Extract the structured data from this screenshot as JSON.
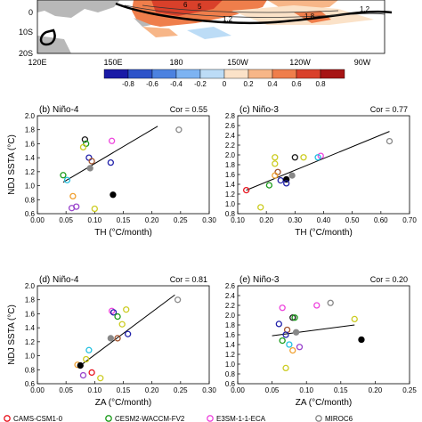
{
  "map": {
    "lat_labels": [
      "0",
      "10S",
      "20S"
    ],
    "lon_labels": [
      "120E",
      "150E",
      "180",
      "150W",
      "120W",
      "90W"
    ],
    "contour_labels": [
      "6",
      "5",
      "1.2",
      "1.8",
      "1.2"
    ],
    "colorbar_ticks": [
      "-0.8",
      "-0.6",
      "-0.4",
      "-0.2",
      "0",
      "0.2",
      "0.4",
      "0.6",
      "0.8"
    ],
    "colorbar_colors": [
      "#1a1aa6",
      "#2c52c9",
      "#4b82e0",
      "#7db3f2",
      "#bcdcf6",
      "#fbe2c8",
      "#f7b688",
      "#ef7e4b",
      "#d9402a",
      "#a61414"
    ]
  },
  "legend": {
    "items": [
      {
        "name": "CAMS-CSM1-0",
        "color": "#e8141e"
      },
      {
        "name": "CESM2-WACCM-FV2",
        "color": "#1a9b1a"
      },
      {
        "name": "E3SM-1-1-ECA",
        "color": "#ee44dd"
      },
      {
        "name": "MIROC6",
        "color": "#888888"
      }
    ]
  },
  "chart_data": [
    {
      "type": "scatter",
      "title": "(b) Niño-4",
      "cor_label": "Cor = 0.55",
      "xlabel": "TH (°C/month)",
      "ylabel": "NDJ SSTA (°C)",
      "xlim": [
        0,
        0.3
      ],
      "ylim": [
        0.6,
        2.0
      ],
      "xticks": [
        "0.00",
        "0.05",
        "0.10",
        "0.15",
        "0.20",
        "0.25",
        "0.30"
      ],
      "yticks": [
        "0.6",
        "0.8",
        "1.0",
        "1.2",
        "1.4",
        "1.6",
        "1.8",
        "2.0"
      ],
      "fit_line": [
        [
          0.045,
          1.05
        ],
        [
          0.21,
          1.85
        ]
      ],
      "points": [
        {
          "x": 0.247,
          "y": 1.8,
          "color": "#888888",
          "fill": "none"
        },
        {
          "x": 0.083,
          "y": 1.66,
          "color": "#1a1a1a",
          "fill": "none"
        },
        {
          "x": 0.13,
          "y": 1.64,
          "color": "#ee44dd",
          "fill": "none"
        },
        {
          "x": 0.085,
          "y": 1.6,
          "color": "#1a9b1a",
          "fill": "none"
        },
        {
          "x": 0.08,
          "y": 1.55,
          "color": "#cccc22",
          "fill": "none"
        },
        {
          "x": 0.09,
          "y": 1.4,
          "color": "#2222aa",
          "fill": "none"
        },
        {
          "x": 0.128,
          "y": 1.33,
          "color": "#2222aa",
          "fill": "none"
        },
        {
          "x": 0.095,
          "y": 1.35,
          "color": "#a0522d",
          "fill": "none"
        },
        {
          "x": 0.092,
          "y": 1.25,
          "color": "#888888",
          "fill": "#888888"
        },
        {
          "x": 0.045,
          "y": 1.15,
          "color": "#1a9b1a",
          "fill": "none"
        },
        {
          "x": 0.052,
          "y": 1.08,
          "color": "#22c0e0",
          "fill": "none"
        },
        {
          "x": 0.062,
          "y": 0.85,
          "color": "#f0a030",
          "fill": "none"
        },
        {
          "x": 0.132,
          "y": 0.87,
          "color": "#000000",
          "fill": "#000000"
        },
        {
          "x": 0.06,
          "y": 0.68,
          "color": "#9944cc",
          "fill": "none"
        },
        {
          "x": 0.068,
          "y": 0.7,
          "color": "#9944cc",
          "fill": "none"
        },
        {
          "x": 0.1,
          "y": 0.67,
          "color": "#cccc22",
          "fill": "none"
        }
      ]
    },
    {
      "type": "scatter",
      "title": "(c) Niño-3",
      "cor_label": "Cor = 0.77",
      "xlabel": "TH (°C/month)",
      "ylabel": "",
      "xlim": [
        0.1,
        0.7
      ],
      "ylim": [
        0.8,
        2.8
      ],
      "xticks": [
        "0.10",
        "0.20",
        "0.30",
        "0.40",
        "0.50",
        "0.60",
        "0.70"
      ],
      "yticks": [
        "0.8",
        "1.0",
        "1.2",
        "1.4",
        "1.6",
        "1.8",
        "2.0",
        "2.2",
        "2.4",
        "2.6",
        "2.8"
      ],
      "fit_line": [
        [
          0.13,
          1.28
        ],
        [
          0.63,
          2.48
        ]
      ],
      "points": [
        {
          "x": 0.63,
          "y": 2.28,
          "color": "#888888",
          "fill": "none"
        },
        {
          "x": 0.3,
          "y": 1.95,
          "color": "#1a1a1a",
          "fill": "none"
        },
        {
          "x": 0.39,
          "y": 1.98,
          "color": "#ee44dd",
          "fill": "none"
        },
        {
          "x": 0.23,
          "y": 1.95,
          "color": "#cccc22",
          "fill": "none"
        },
        {
          "x": 0.23,
          "y": 1.82,
          "color": "#cccc22",
          "fill": "none"
        },
        {
          "x": 0.33,
          "y": 1.95,
          "color": "#cccc22",
          "fill": "none"
        },
        {
          "x": 0.38,
          "y": 1.95,
          "color": "#22c0e0",
          "fill": "none"
        },
        {
          "x": 0.24,
          "y": 1.65,
          "color": "#a0522d",
          "fill": "none"
        },
        {
          "x": 0.23,
          "y": 1.58,
          "color": "#f0a030",
          "fill": "none"
        },
        {
          "x": 0.21,
          "y": 1.38,
          "color": "#1a9b1a",
          "fill": "none"
        },
        {
          "x": 0.25,
          "y": 1.48,
          "color": "#2222aa",
          "fill": "none"
        },
        {
          "x": 0.29,
          "y": 1.58,
          "color": "#888888",
          "fill": "#888888"
        },
        {
          "x": 0.27,
          "y": 1.5,
          "color": "#000000",
          "fill": "#000000"
        },
        {
          "x": 0.27,
          "y": 1.42,
          "color": "#2222aa",
          "fill": "none"
        },
        {
          "x": 0.18,
          "y": 0.93,
          "color": "#cccc22",
          "fill": "none"
        },
        {
          "x": 0.13,
          "y": 1.28,
          "color": "#e8141e",
          "fill": "none"
        }
      ]
    },
    {
      "type": "scatter",
      "title": "(d) Niño-4",
      "cor_label": "Cor = 0.81",
      "xlabel": "ZA (°C/month)",
      "ylabel": "NDJ SSTA (°C)",
      "xlim": [
        0,
        0.3
      ],
      "ylim": [
        0.6,
        2.0
      ],
      "xticks": [
        "0.00",
        "0.05",
        "0.10",
        "0.15",
        "0.20",
        "0.25",
        "0.30"
      ],
      "yticks": [
        "0.6",
        "0.8",
        "1.0",
        "1.2",
        "1.4",
        "1.6",
        "1.8",
        "2.0"
      ],
      "fit_line": [
        [
          0.075,
          0.86
        ],
        [
          0.24,
          1.87
        ]
      ],
      "points": [
        {
          "x": 0.245,
          "y": 1.8,
          "color": "#888888",
          "fill": "none"
        },
        {
          "x": 0.13,
          "y": 1.64,
          "color": "#ee44dd",
          "fill": "none"
        },
        {
          "x": 0.133,
          "y": 1.62,
          "color": "#2222aa",
          "fill": "none"
        },
        {
          "x": 0.155,
          "y": 1.66,
          "color": "#cccc22",
          "fill": "none"
        },
        {
          "x": 0.14,
          "y": 1.56,
          "color": "#1a9b1a",
          "fill": "none"
        },
        {
          "x": 0.148,
          "y": 1.45,
          "color": "#cccc22",
          "fill": "none"
        },
        {
          "x": 0.158,
          "y": 1.31,
          "color": "#2222aa",
          "fill": "none"
        },
        {
          "x": 0.128,
          "y": 1.25,
          "color": "#888888",
          "fill": "#888888"
        },
        {
          "x": 0.14,
          "y": 1.25,
          "color": "#a0522d",
          "fill": "none"
        },
        {
          "x": 0.09,
          "y": 1.08,
          "color": "#22c0e0",
          "fill": "none"
        },
        {
          "x": 0.085,
          "y": 0.95,
          "color": "#cccc22",
          "fill": "none"
        },
        {
          "x": 0.07,
          "y": 0.87,
          "color": "#f0a030",
          "fill": "none"
        },
        {
          "x": 0.075,
          "y": 0.86,
          "color": "#000000",
          "fill": "#000000"
        },
        {
          "x": 0.08,
          "y": 0.72,
          "color": "#9944cc",
          "fill": "none"
        },
        {
          "x": 0.095,
          "y": 0.76,
          "color": "#e8141e",
          "fill": "none"
        },
        {
          "x": 0.11,
          "y": 0.68,
          "color": "#cccc22",
          "fill": "none"
        }
      ]
    },
    {
      "type": "scatter",
      "title": "(e) Niño-3",
      "cor_label": "Cor = 0.20",
      "xlabel": "ZA (°C/month)",
      "ylabel": "",
      "xlim": [
        0,
        0.25
      ],
      "ylim": [
        0.6,
        2.6
      ],
      "xticks": [
        "0.00",
        "0.05",
        "0.10",
        "0.15",
        "0.20",
        "0.25"
      ],
      "yticks": [
        "0.6",
        "0.8",
        "1.0",
        "1.2",
        "1.4",
        "1.6",
        "1.8",
        "2.0",
        "2.2",
        "2.4",
        "2.6"
      ],
      "fit_line": [
        [
          0.05,
          1.58
        ],
        [
          0.17,
          1.8
        ]
      ],
      "points": [
        {
          "x": 0.135,
          "y": 2.25,
          "color": "#888888",
          "fill": "none"
        },
        {
          "x": 0.065,
          "y": 2.15,
          "color": "#ee44dd",
          "fill": "none"
        },
        {
          "x": 0.115,
          "y": 2.2,
          "color": "#ee44dd",
          "fill": "none"
        },
        {
          "x": 0.08,
          "y": 1.95,
          "color": "#1a1a1a",
          "fill": "none"
        },
        {
          "x": 0.083,
          "y": 1.95,
          "color": "#1a9b1a",
          "fill": "none"
        },
        {
          "x": 0.17,
          "y": 1.92,
          "color": "#cccc22",
          "fill": "none"
        },
        {
          "x": 0.06,
          "y": 1.82,
          "color": "#2222aa",
          "fill": "none"
        },
        {
          "x": 0.072,
          "y": 1.7,
          "color": "#a0522d",
          "fill": "none"
        },
        {
          "x": 0.085,
          "y": 1.65,
          "color": "#888888",
          "fill": "#888888"
        },
        {
          "x": 0.07,
          "y": 1.6,
          "color": "#2222aa",
          "fill": "none"
        },
        {
          "x": 0.065,
          "y": 1.48,
          "color": "#1a9b1a",
          "fill": "none"
        },
        {
          "x": 0.075,
          "y": 1.4,
          "color": "#22c0e0",
          "fill": "none"
        },
        {
          "x": 0.08,
          "y": 1.28,
          "color": "#f0a030",
          "fill": "none"
        },
        {
          "x": 0.09,
          "y": 1.35,
          "color": "#9944cc",
          "fill": "none"
        },
        {
          "x": 0.18,
          "y": 1.5,
          "color": "#000000",
          "fill": "#000000"
        },
        {
          "x": 0.07,
          "y": 0.92,
          "color": "#cccc22",
          "fill": "none"
        }
      ]
    }
  ]
}
